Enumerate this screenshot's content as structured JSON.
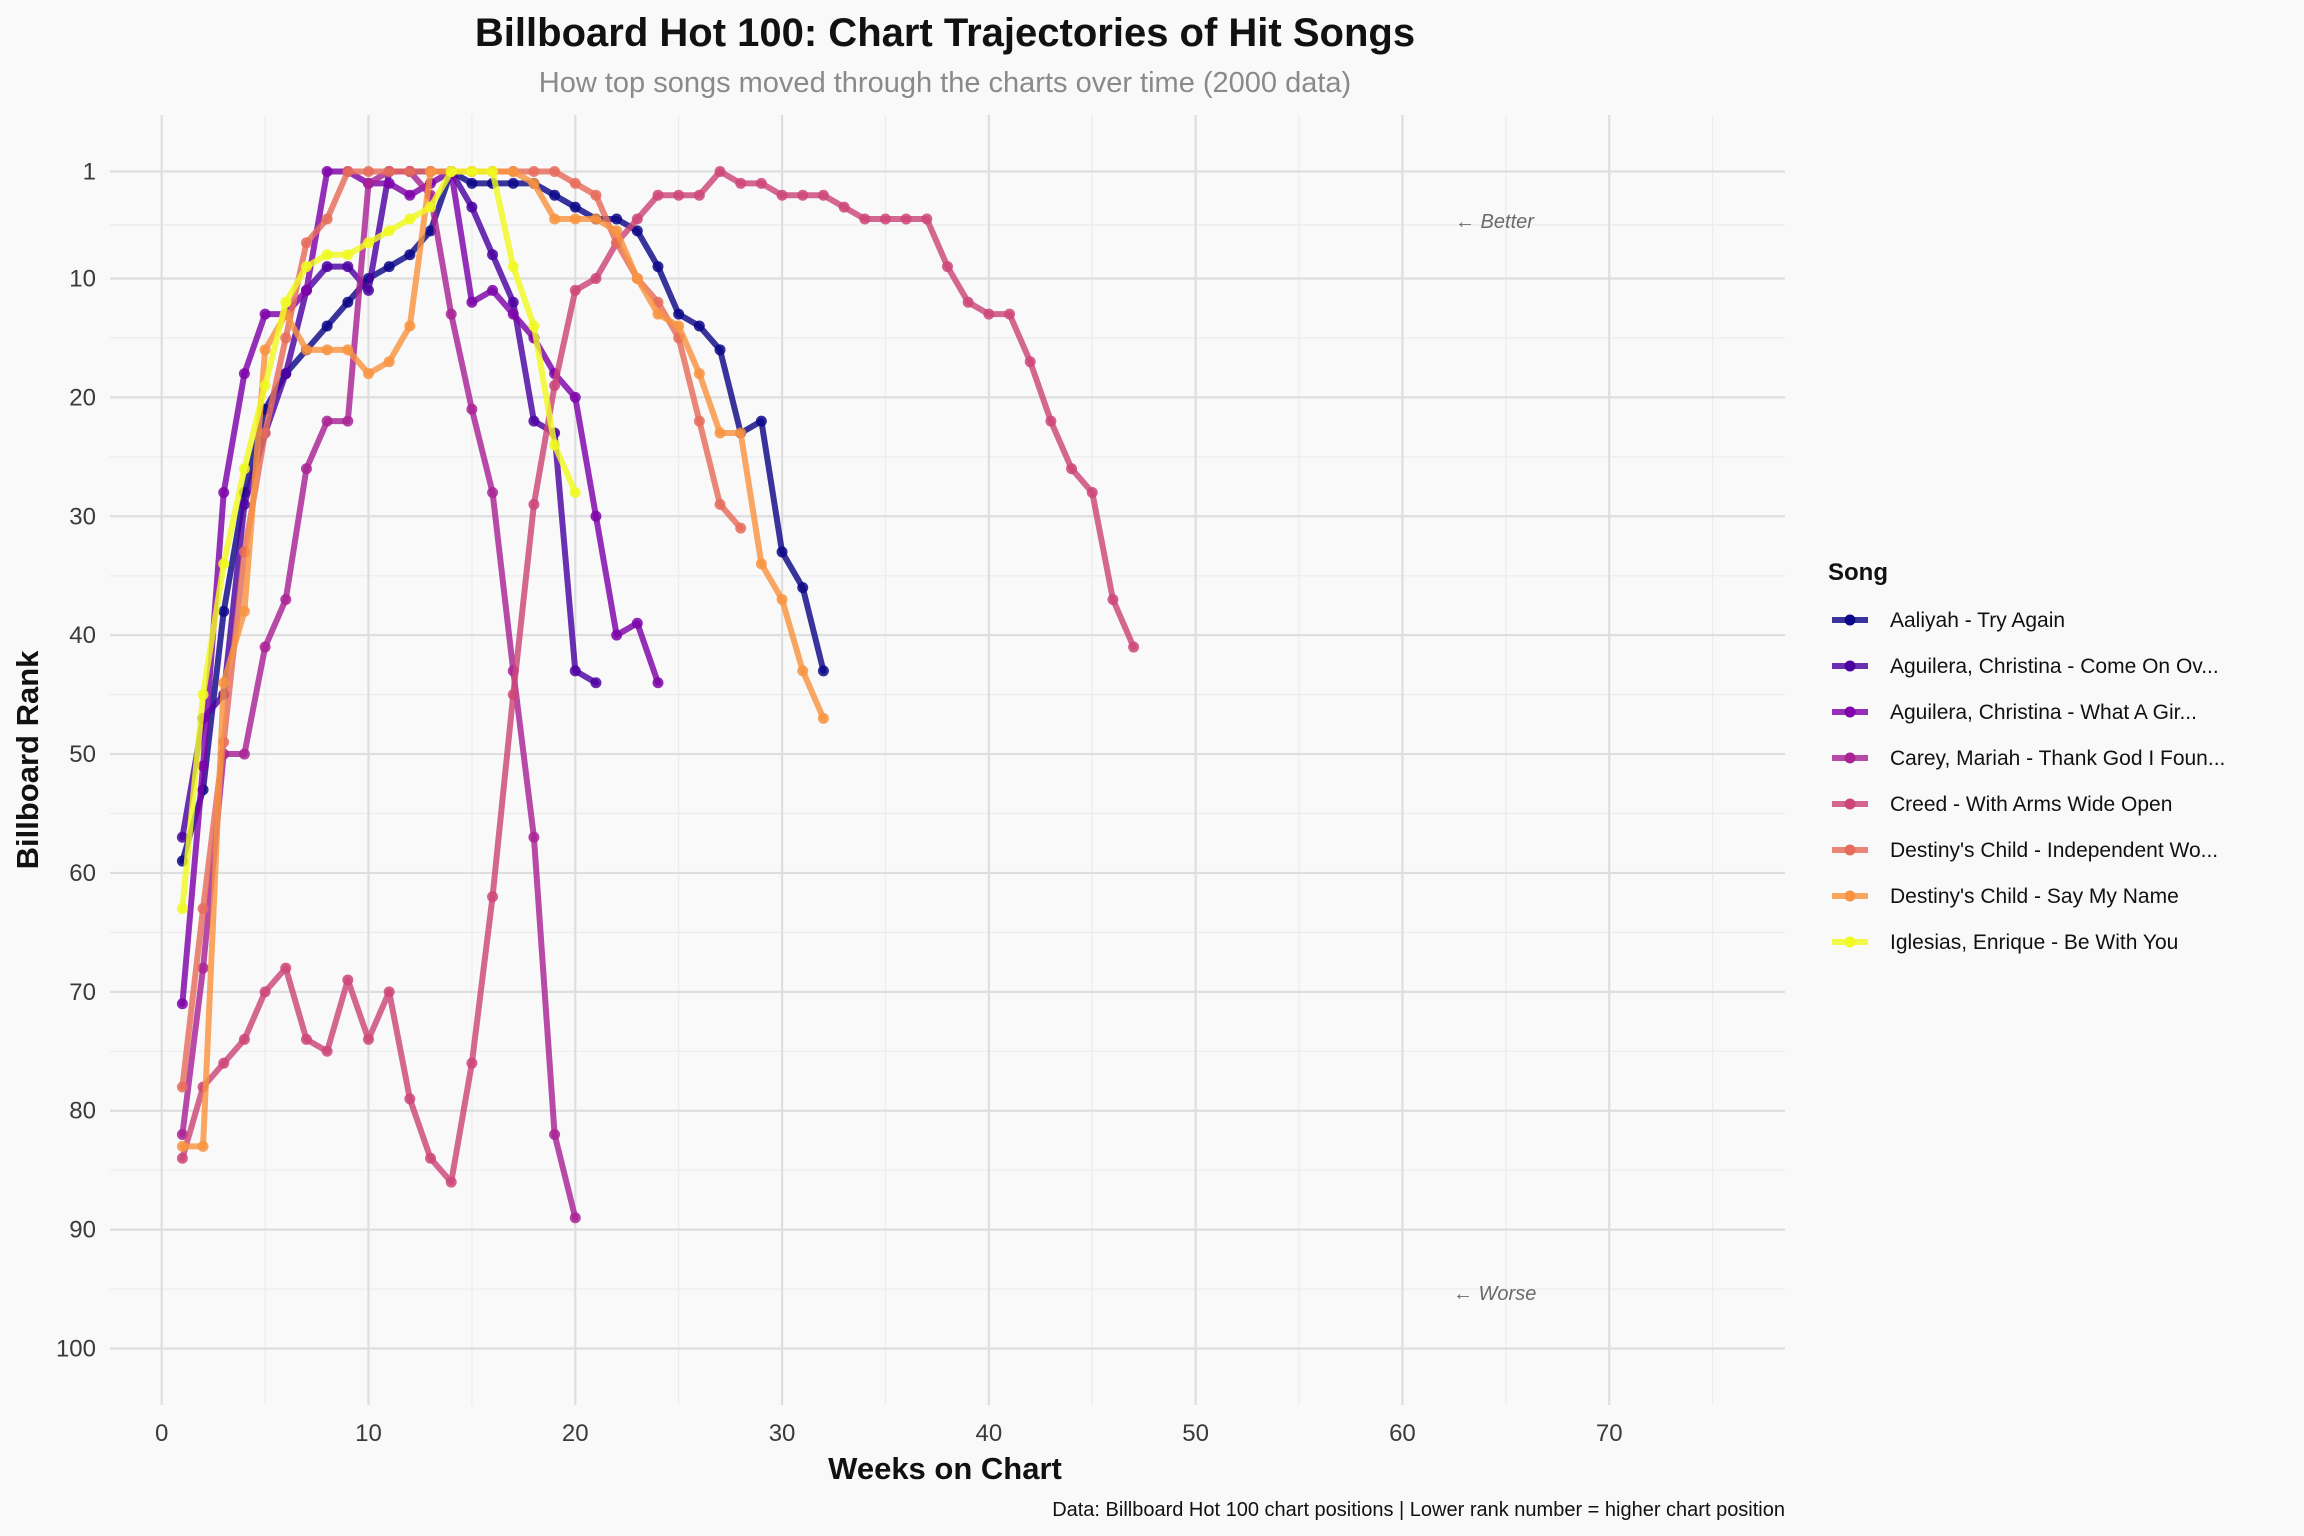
{
  "chart_data": {
    "type": "line",
    "title": "Billboard Hot 100: Chart Trajectories of Hit Songs",
    "subtitle": "How top songs moved through the charts over time (2000 data)",
    "xlabel": "Weeks on Chart",
    "ylabel": "Billboard Rank",
    "caption": "Data: Billboard Hot 100 chart positions | Lower rank number = higher chart position",
    "xlim": [
      -2.5,
      78.5
    ],
    "ylim": [
      -3.75,
      104.75
    ],
    "y_reversed": true,
    "x_ticks": [
      0,
      10,
      20,
      30,
      40,
      50,
      60,
      70
    ],
    "x_tick_labels": [
      "0",
      "10",
      "20",
      "30",
      "40",
      "50",
      "60",
      "70"
    ],
    "y_ticks": [
      1,
      10,
      20,
      30,
      40,
      50,
      60,
      70,
      80,
      90,
      100
    ],
    "y_tick_labels": [
      "1",
      "10",
      "20",
      "30",
      "40",
      "50",
      "60",
      "70",
      "80",
      "90",
      "100"
    ],
    "grid": true,
    "legend_title": "Song",
    "legend_position": "right",
    "annotations": [
      {
        "text": "← Better",
        "x": 65,
        "y": 5
      },
      {
        "text": "← Worse",
        "x": 65,
        "y": 95.5
      }
    ],
    "series": [
      {
        "name": "Aaliyah - Try Again",
        "color": "#0d0887",
        "values": [
          [
            1,
            59
          ],
          [
            2,
            53
          ],
          [
            3,
            38
          ],
          [
            4,
            28
          ],
          [
            5,
            21
          ],
          [
            6,
            18
          ],
          [
            7,
            16
          ],
          [
            8,
            14
          ],
          [
            9,
            12
          ],
          [
            10,
            10
          ],
          [
            11,
            9
          ],
          [
            12,
            8
          ],
          [
            13,
            6
          ],
          [
            14,
            1
          ],
          [
            15,
            2
          ],
          [
            16,
            2
          ],
          [
            17,
            2
          ],
          [
            18,
            2
          ],
          [
            19,
            3
          ],
          [
            20,
            4
          ],
          [
            21,
            5
          ],
          [
            22,
            5
          ],
          [
            23,
            6
          ],
          [
            24,
            9
          ],
          [
            25,
            13
          ],
          [
            26,
            14
          ],
          [
            27,
            16
          ],
          [
            28,
            23
          ],
          [
            29,
            22
          ],
          [
            30,
            33
          ],
          [
            31,
            36
          ],
          [
            32,
            43
          ]
        ]
      },
      {
        "name": "Aguilera, Christina - Come On Ov...",
        "color": "#4c02a1",
        "values": [
          [
            1,
            57
          ],
          [
            2,
            47
          ],
          [
            3,
            45
          ],
          [
            4,
            29
          ],
          [
            5,
            23
          ],
          [
            6,
            18
          ],
          [
            7,
            11
          ],
          [
            8,
            9
          ],
          [
            9,
            9
          ],
          [
            10,
            11
          ],
          [
            11,
            1
          ],
          [
            12,
            1
          ],
          [
            13,
            1
          ],
          [
            14,
            1
          ],
          [
            15,
            4
          ],
          [
            16,
            8
          ],
          [
            17,
            12
          ],
          [
            18,
            22
          ],
          [
            19,
            23
          ],
          [
            20,
            43
          ],
          [
            21,
            44
          ]
        ]
      },
      {
        "name": "Aguilera, Christina - What A Gir...",
        "color": "#7e03a8",
        "values": [
          [
            1,
            71
          ],
          [
            2,
            51
          ],
          [
            3,
            28
          ],
          [
            4,
            18
          ],
          [
            5,
            13
          ],
          [
            6,
            13
          ],
          [
            7,
            11
          ],
          [
            8,
            1
          ],
          [
            9,
            1
          ],
          [
            10,
            2
          ],
          [
            11,
            2
          ],
          [
            12,
            3
          ],
          [
            13,
            2
          ],
          [
            14,
            1
          ],
          [
            15,
            12
          ],
          [
            16,
            11
          ],
          [
            17,
            13
          ],
          [
            18,
            15
          ],
          [
            19,
            18
          ],
          [
            20,
            20
          ],
          [
            21,
            30
          ],
          [
            22,
            40
          ],
          [
            23,
            39
          ],
          [
            24,
            44
          ]
        ]
      },
      {
        "name": "Carey, Mariah - Thank God I Foun...",
        "color": "#a92395",
        "values": [
          [
            1,
            82
          ],
          [
            2,
            68
          ],
          [
            3,
            50
          ],
          [
            4,
            50
          ],
          [
            5,
            41
          ],
          [
            6,
            37
          ],
          [
            7,
            26
          ],
          [
            8,
            22
          ],
          [
            9,
            22
          ],
          [
            10,
            2
          ],
          [
            11,
            1
          ],
          [
            12,
            1
          ],
          [
            13,
            3
          ],
          [
            14,
            13
          ],
          [
            15,
            21
          ],
          [
            16,
            28
          ],
          [
            17,
            43
          ],
          [
            18,
            57
          ],
          [
            19,
            82
          ],
          [
            20,
            89
          ]
        ]
      },
      {
        "name": "Creed - With Arms Wide Open",
        "color": "#cc4778",
        "values": [
          [
            1,
            84
          ],
          [
            2,
            78
          ],
          [
            3,
            76
          ],
          [
            4,
            74
          ],
          [
            5,
            70
          ],
          [
            6,
            68
          ],
          [
            7,
            74
          ],
          [
            8,
            75
          ],
          [
            9,
            69
          ],
          [
            10,
            74
          ],
          [
            11,
            70
          ],
          [
            12,
            79
          ],
          [
            13,
            84
          ],
          [
            14,
            86
          ],
          [
            15,
            76
          ],
          [
            16,
            62
          ],
          [
            17,
            45
          ],
          [
            18,
            29
          ],
          [
            19,
            19
          ],
          [
            20,
            11
          ],
          [
            21,
            10
          ],
          [
            22,
            7
          ],
          [
            23,
            5
          ],
          [
            24,
            3
          ],
          [
            25,
            3
          ],
          [
            26,
            3
          ],
          [
            27,
            1
          ],
          [
            28,
            2
          ],
          [
            29,
            2
          ],
          [
            30,
            3
          ],
          [
            31,
            3
          ],
          [
            32,
            3
          ],
          [
            33,
            4
          ],
          [
            34,
            5
          ],
          [
            35,
            5
          ],
          [
            36,
            5
          ],
          [
            37,
            5
          ],
          [
            38,
            9
          ],
          [
            39,
            12
          ],
          [
            40,
            13
          ],
          [
            41,
            13
          ],
          [
            42,
            17
          ],
          [
            43,
            22
          ],
          [
            44,
            26
          ],
          [
            45,
            28
          ],
          [
            46,
            37
          ],
          [
            47,
            41
          ]
        ]
      },
      {
        "name": "Destiny's Child - Independent Wo...",
        "color": "#e66c5c",
        "values": [
          [
            1,
            78
          ],
          [
            2,
            63
          ],
          [
            3,
            49
          ],
          [
            4,
            33
          ],
          [
            5,
            23
          ],
          [
            6,
            15
          ],
          [
            7,
            7
          ],
          [
            8,
            5
          ],
          [
            9,
            1
          ],
          [
            10,
            1
          ],
          [
            11,
            1
          ],
          [
            12,
            1
          ],
          [
            13,
            1
          ],
          [
            14,
            1
          ],
          [
            15,
            1
          ],
          [
            16,
            1
          ],
          [
            17,
            1
          ],
          [
            18,
            1
          ],
          [
            19,
            1
          ],
          [
            20,
            2
          ],
          [
            21,
            3
          ],
          [
            22,
            7
          ],
          [
            23,
            10
          ],
          [
            24,
            12
          ],
          [
            25,
            15
          ],
          [
            26,
            22
          ],
          [
            27,
            29
          ],
          [
            28,
            31
          ]
        ]
      },
      {
        "name": "Destiny's Child - Say My Name",
        "color": "#f89441",
        "values": [
          [
            1,
            83
          ],
          [
            2,
            83
          ],
          [
            3,
            44
          ],
          [
            4,
            38
          ],
          [
            5,
            16
          ],
          [
            6,
            13
          ],
          [
            7,
            16
          ],
          [
            8,
            16
          ],
          [
            9,
            16
          ],
          [
            10,
            18
          ],
          [
            11,
            17
          ],
          [
            12,
            14
          ],
          [
            13,
            1
          ],
          [
            14,
            1
          ],
          [
            15,
            1
          ],
          [
            16,
            1
          ],
          [
            17,
            1
          ],
          [
            18,
            2
          ],
          [
            19,
            5
          ],
          [
            20,
            5
          ],
          [
            21,
            5
          ],
          [
            22,
            6
          ],
          [
            23,
            10
          ],
          [
            24,
            13
          ],
          [
            25,
            14
          ],
          [
            26,
            18
          ],
          [
            27,
            23
          ],
          [
            28,
            23
          ],
          [
            29,
            34
          ],
          [
            30,
            37
          ],
          [
            31,
            43
          ],
          [
            32,
            47
          ]
        ]
      },
      {
        "name": "Iglesias, Enrique - Be With You",
        "color": "#f0f921",
        "values": [
          [
            1,
            63
          ],
          [
            2,
            45
          ],
          [
            3,
            34
          ],
          [
            4,
            26
          ],
          [
            5,
            19
          ],
          [
            6,
            12
          ],
          [
            7,
            9
          ],
          [
            8,
            8
          ],
          [
            9,
            8
          ],
          [
            10,
            7
          ],
          [
            11,
            6
          ],
          [
            12,
            5
          ],
          [
            13,
            4
          ],
          [
            14,
            1
          ],
          [
            15,
            1
          ],
          [
            16,
            1
          ],
          [
            17,
            9
          ],
          [
            18,
            14
          ],
          [
            19,
            24
          ],
          [
            20,
            28
          ]
        ]
      }
    ]
  }
}
